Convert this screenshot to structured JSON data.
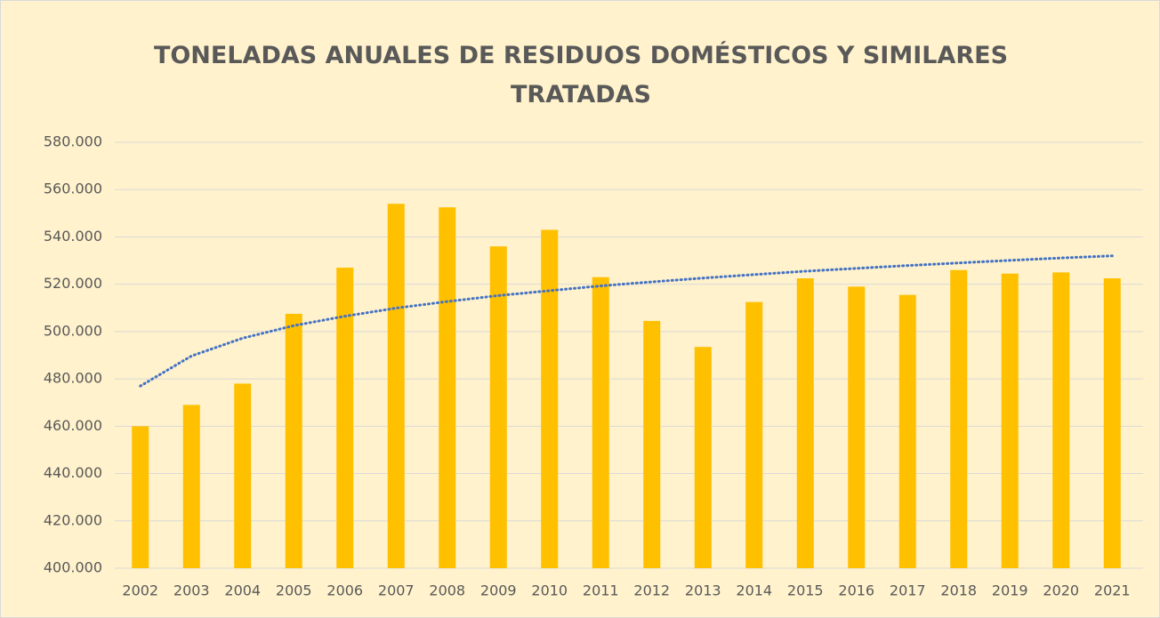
{
  "chart_data": {
    "type": "bar",
    "title": "TONELADAS ANUALES DE RESIDUOS DOMÉSTICOS Y SIMILARES TRATADAS",
    "categories": [
      "2002",
      "2003",
      "2004",
      "2005",
      "2006",
      "2007",
      "2008",
      "2009",
      "2010",
      "2011",
      "2012",
      "2013",
      "2014",
      "2015",
      "2016",
      "2017",
      "2018",
      "2019",
      "2020",
      "2021"
    ],
    "values": [
      460000,
      469000,
      478000,
      507500,
      527000,
      554000,
      552500,
      536000,
      543000,
      523000,
      504500,
      493500,
      512500,
      522500,
      519000,
      515500,
      526000,
      524500,
      525000,
      522500
    ],
    "color": "#ffc000",
    "trendline": {
      "color": "#4472c4",
      "values": [
        477000,
        489700,
        497200,
        502500,
        506500,
        509900,
        512700,
        515200,
        517300,
        519300,
        521000,
        522600,
        524100,
        525500,
        526700,
        527900,
        529000,
        530100,
        531100,
        532000
      ]
    },
    "ylim": [
      400000,
      580000
    ],
    "yticks": [
      {
        "value": 400000,
        "label": "400.000"
      },
      {
        "value": 420000,
        "label": "420.000"
      },
      {
        "value": 440000,
        "label": "440.000"
      },
      {
        "value": 460000,
        "label": "460.000"
      },
      {
        "value": 480000,
        "label": "480.000"
      },
      {
        "value": 500000,
        "label": "500.000"
      },
      {
        "value": 520000,
        "label": "520.000"
      },
      {
        "value": 540000,
        "label": "540.000"
      },
      {
        "value": 560000,
        "label": "560.000"
      },
      {
        "value": 580000,
        "label": "580.000"
      }
    ],
    "grid": true
  }
}
